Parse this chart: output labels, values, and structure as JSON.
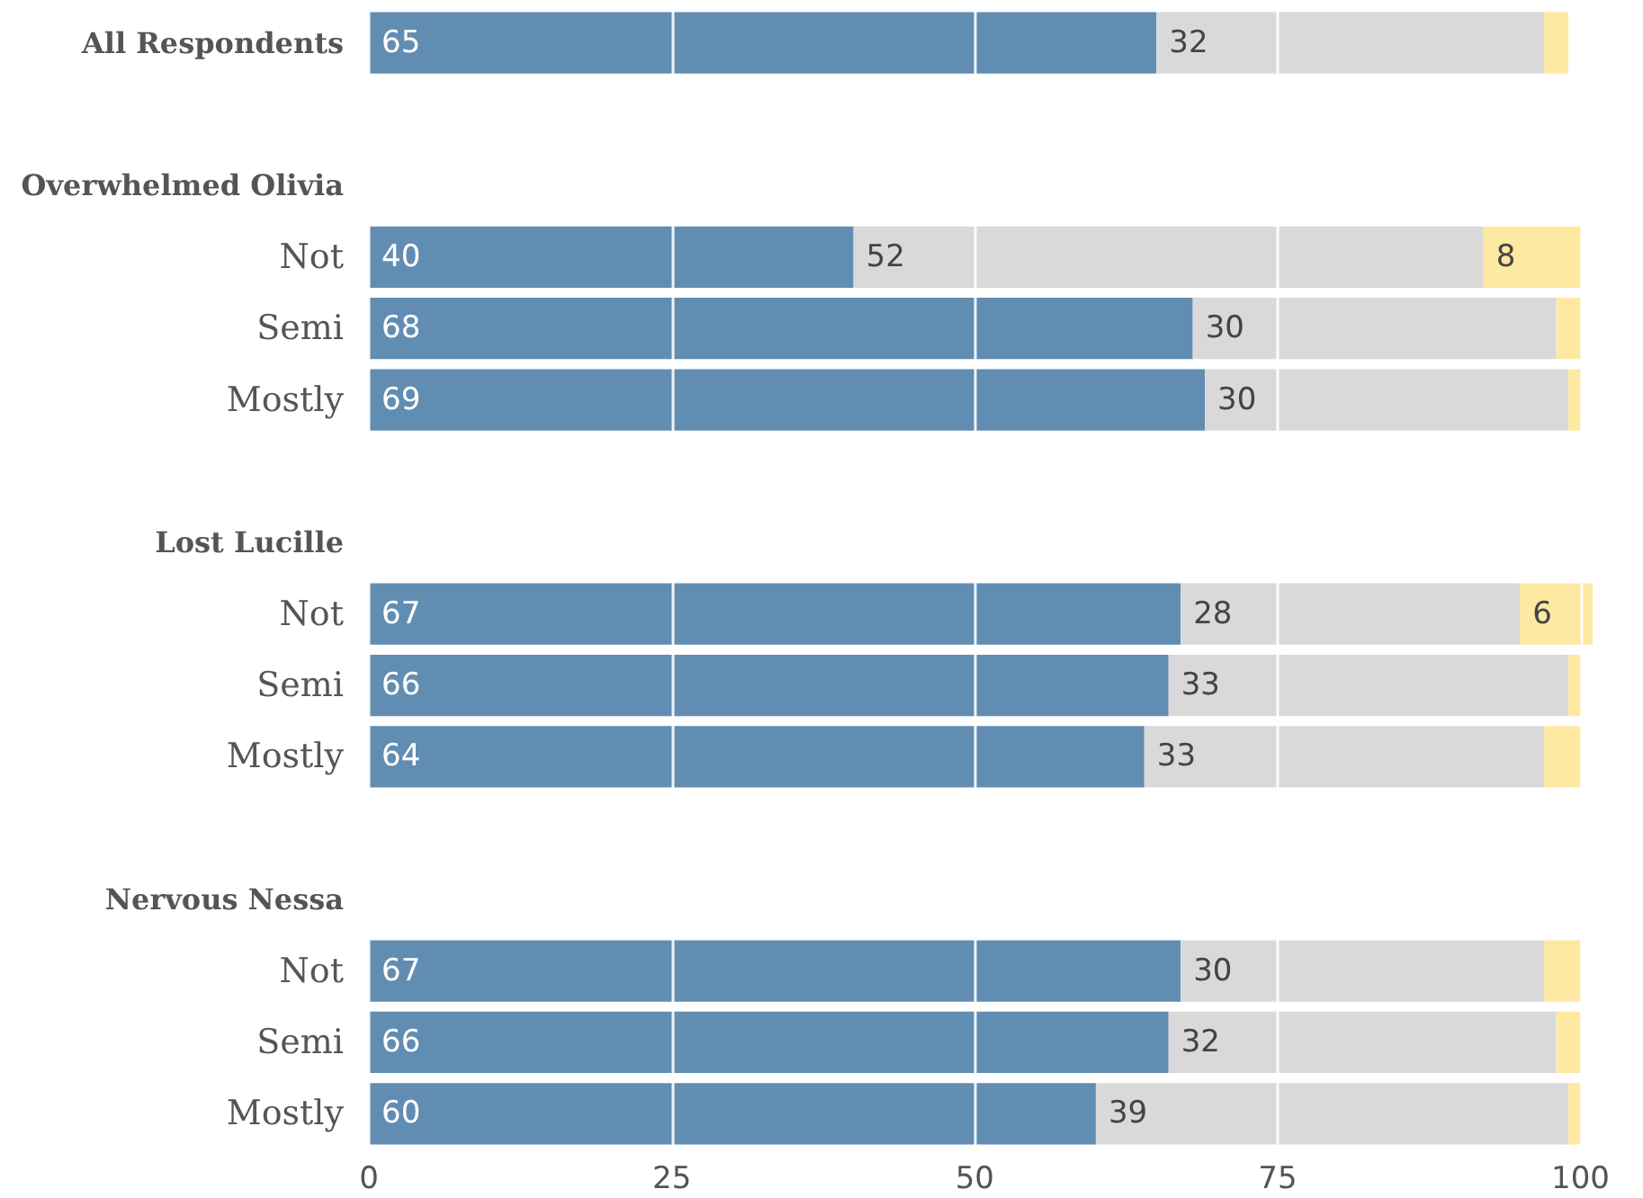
{
  "chart_data": {
    "type": "bar",
    "orientation": "horizontal",
    "stacked": true,
    "categories": [
      "All Respondents",
      null,
      "Overwhelmed Olivia",
      "Not",
      "Semi",
      "Mostly",
      null,
      "Lost Lucille",
      "Not",
      "Semi",
      "Mostly",
      null,
      "Nervous Nessa",
      "Not",
      "Semi",
      "Mostly"
    ],
    "series": [
      {
        "color": "#628db2",
        "values": [
          65,
          null,
          null,
          40,
          68,
          69,
          null,
          null,
          67,
          66,
          64,
          null,
          null,
          67,
          66,
          60
        ],
        "value_labels": [
          "65",
          null,
          null,
          "40",
          "68",
          "69",
          null,
          null,
          "67",
          "66",
          "64",
          null,
          null,
          "67",
          "66",
          "60"
        ]
      },
      {
        "color": "#d9d9d9",
        "values": [
          32,
          null,
          null,
          52,
          30,
          30,
          null,
          null,
          28,
          33,
          33,
          null,
          null,
          30,
          32,
          39
        ],
        "value_labels": [
          "32",
          null,
          null,
          "52",
          "30",
          "30",
          null,
          null,
          "28",
          "33",
          "33",
          null,
          null,
          "30",
          "32",
          "39"
        ]
      },
      {
        "color": "#fde9a2",
        "values": [
          2,
          null,
          null,
          8,
          2,
          1,
          null,
          null,
          6,
          1,
          3,
          null,
          null,
          3,
          2,
          1
        ],
        "value_labels": [
          null,
          null,
          null,
          "8",
          null,
          null,
          null,
          null,
          "6",
          null,
          null,
          null,
          null,
          null,
          null,
          null
        ]
      }
    ],
    "xlim": [
      0,
      101
    ],
    "xticks": [
      0,
      25,
      50,
      75,
      100
    ],
    "grid": "x"
  }
}
